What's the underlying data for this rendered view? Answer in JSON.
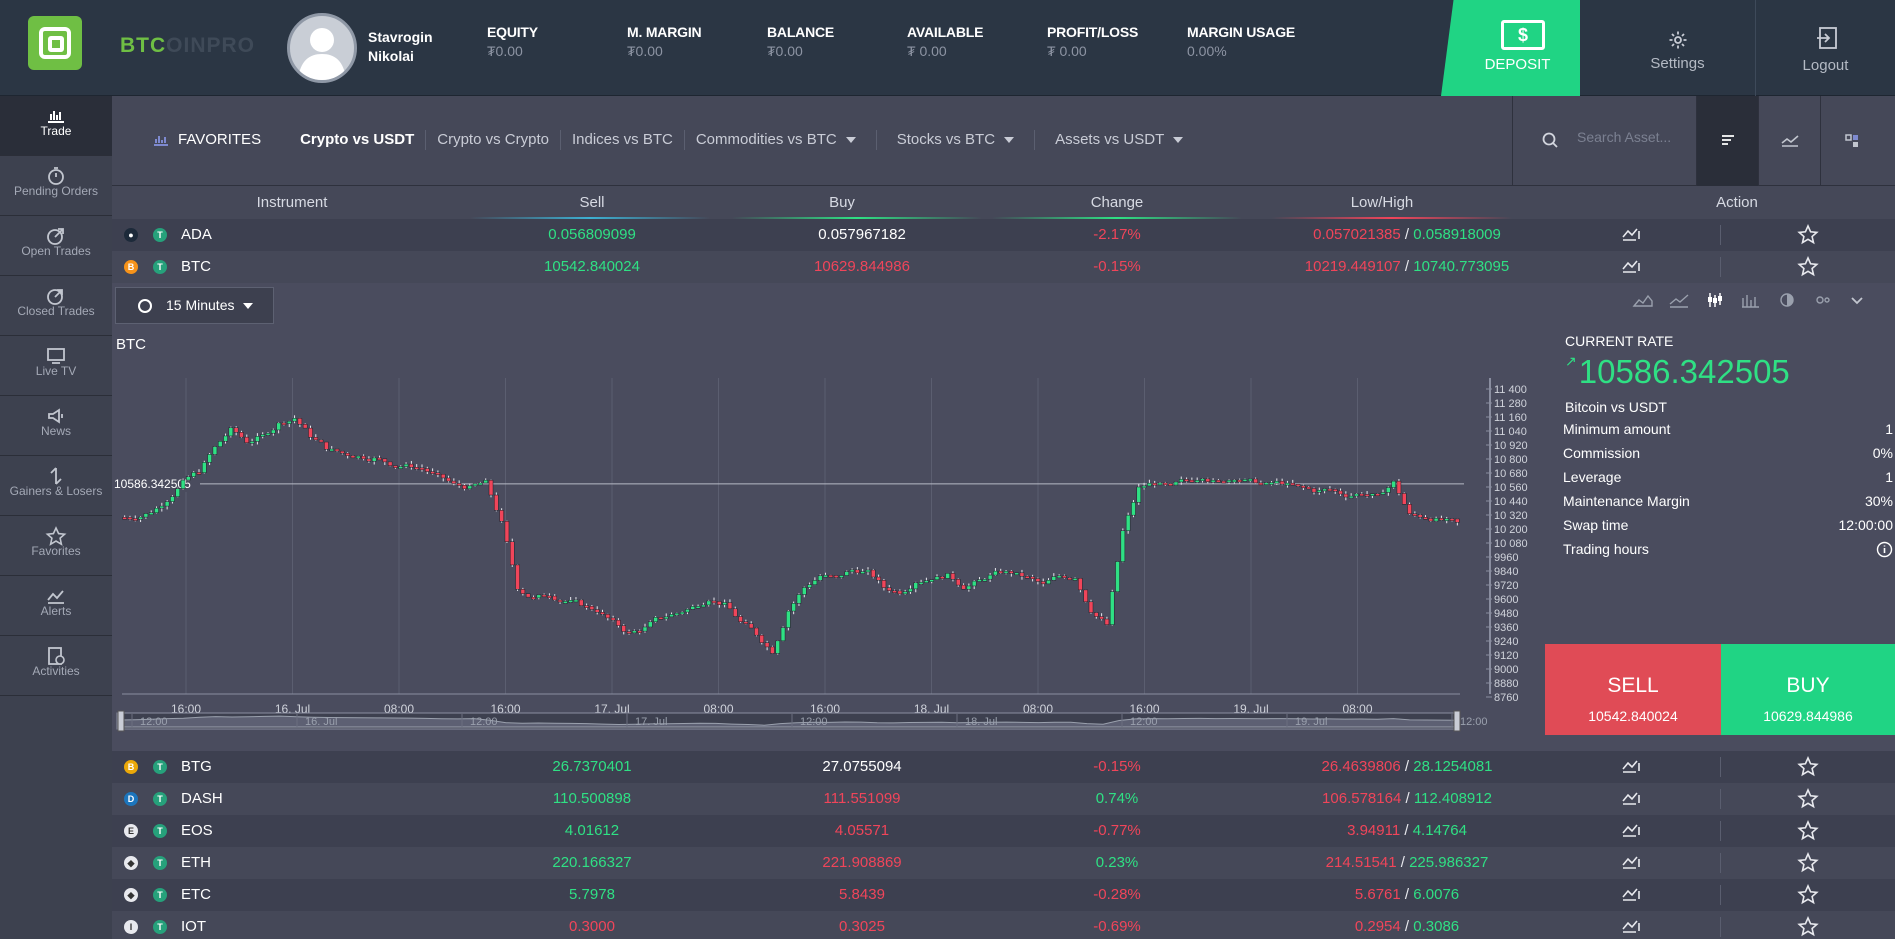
{
  "brand": {
    "name_a": "BTC",
    "name_b": "OINPRO"
  },
  "user": {
    "first": "Stavrogin",
    "last": "Nikolai"
  },
  "stats": [
    {
      "label": "EQUITY",
      "value": "₮0.00"
    },
    {
      "label": "M. MARGIN",
      "value": "₮0.00"
    },
    {
      "label": "BALANCE",
      "value": "₮0.00"
    },
    {
      "label": "AVAILABLE",
      "value": "₮ 0.00"
    },
    {
      "label": "PROFIT/LOSS",
      "value": "₮ 0.00"
    },
    {
      "label": "MARGIN USAGE",
      "value": "0.00%"
    }
  ],
  "header": {
    "deposit": "DEPOSIT",
    "deposit_symbol": "$",
    "settings": "Settings",
    "logout": "Logout"
  },
  "sidebar": [
    {
      "label": "Trade",
      "icon": "trade-icon"
    },
    {
      "label": "Pending Orders",
      "icon": "stopwatch-icon"
    },
    {
      "label": "Open Trades",
      "icon": "open-trades-icon"
    },
    {
      "label": "Closed Trades",
      "icon": "closed-trades-icon"
    },
    {
      "label": "Live TV",
      "icon": "tv-icon"
    },
    {
      "label": "News",
      "icon": "megaphone-icon"
    },
    {
      "label": "Gainers & Losers",
      "icon": "gainers-losers-icon"
    },
    {
      "label": "Favorites",
      "icon": "star-icon"
    },
    {
      "label": "Alerts",
      "icon": "alerts-icon"
    },
    {
      "label": "Activities",
      "icon": "activities-icon"
    }
  ],
  "filters": {
    "favorites": "FAVORITES",
    "tabs": [
      "Crypto vs USDT",
      "Crypto vs Crypto",
      "Indices vs BTC",
      "Commodities vs BTC",
      "Stocks vs BTC",
      "Assets vs USDT"
    ],
    "search_placeholder": "Search Asset..."
  },
  "table": {
    "headers": [
      "Instrument",
      "Sell",
      "Buy",
      "Change",
      "Low/High",
      "Action"
    ],
    "rows": [
      {
        "name": "ADA",
        "sell": "0.056809099",
        "buy": "0.057967182",
        "change": "-2.17%",
        "low": "0.057021385",
        "high": "0.058918009"
      },
      {
        "name": "BTC",
        "sell": "10542.840024",
        "buy": "10629.844986",
        "change": "-0.15%",
        "low": "10219.449107",
        "high": "10740.773095"
      },
      {
        "name": "BTG",
        "sell": "26.7370401",
        "buy": "27.0755094",
        "change": "-0.15%",
        "low": "26.4639806",
        "high": "28.1254081"
      },
      {
        "name": "DASH",
        "sell": "110.500898",
        "buy": "111.551099",
        "change": "0.74%",
        "low": "106.578164",
        "high": "112.408912"
      },
      {
        "name": "EOS",
        "sell": "4.01612",
        "buy": "4.05571",
        "change": "-0.77%",
        "low": "3.94911",
        "high": "4.14764"
      },
      {
        "name": "ETH",
        "sell": "220.166327",
        "buy": "221.908869",
        "change": "0.23%",
        "low": "214.51541",
        "high": "225.986327"
      },
      {
        "name": "ETC",
        "sell": "5.7978",
        "buy": "5.8439",
        "change": "-0.28%",
        "low": "5.6761",
        "high": "6.0076"
      },
      {
        "name": "IOT",
        "sell": "0.3000",
        "buy": "0.3025",
        "change": "-0.69%",
        "low": "0.2954",
        "high": "0.3086"
      }
    ]
  },
  "chart_panel": {
    "timeframe": "15 Minutes",
    "title": "BTC",
    "price_label": "10586.342505",
    "rate_title": "CURRENT RATE",
    "rate": "10586.342505",
    "pair": "Bitcoin vs USDT",
    "details": [
      {
        "k": "Minimum amount",
        "v": "1"
      },
      {
        "k": "Commission",
        "v": "0%"
      },
      {
        "k": "Leverage",
        "v": "1"
      },
      {
        "k": "Maintenance Margin",
        "v": "30%"
      },
      {
        "k": "Swap time",
        "v": "12:00:00"
      },
      {
        "k": "Trading hours",
        "v": ""
      }
    ],
    "sell_label": "SELL",
    "sell_price": "10542.840024",
    "buy_label": "BUY",
    "buy_price": "10629.844986"
  },
  "chart_data": {
    "type": "candlestick",
    "title": "BTC",
    "yticks": [
      11400,
      11280,
      11160,
      11040,
      10920,
      10800,
      10680,
      10560,
      10440,
      10320,
      10200,
      10080,
      9960,
      9840,
      9720,
      9600,
      9480,
      9360,
      9240,
      9120,
      9000,
      8880,
      8760
    ],
    "ylim": [
      8760,
      11400
    ],
    "xticks": [
      "16:00",
      "16. Jul",
      "08:00",
      "16:00",
      "17. Jul",
      "08:00",
      "16:00",
      "18. Jul",
      "08:00",
      "16:00",
      "19. Jul",
      "08:00"
    ],
    "nav_ticks": [
      "12:00",
      "16. Jul",
      "12:00",
      "17. Jul",
      "12:00",
      "18. Jul",
      "12:00",
      "19. Jul",
      "12:00"
    ],
    "current_price": 10586.342505,
    "close_path": [
      10300,
      10350,
      10450,
      10600,
      10700,
      10900,
      11050,
      10950,
      11000,
      11100,
      11150,
      11000,
      10900,
      10850,
      10820,
      10800,
      10760,
      10740,
      10720,
      10650,
      10580,
      10550,
      10600,
      10250,
      9700,
      9600,
      9640,
      9580,
      9560,
      9500,
      9400,
      9300,
      9350,
      9450,
      9480,
      9530,
      9600,
      9550,
      9400,
      9300,
      9150,
      9500,
      9700,
      9800,
      9780,
      9850,
      9830,
      9700,
      9660,
      9750,
      9780,
      9800,
      9700,
      9760,
      9820,
      9830,
      9780,
      9720,
      9800,
      9790,
      9500,
      9380,
      10180,
      10550,
      10600,
      10560,
      10620,
      10650,
      10600,
      10640,
      10610,
      10580,
      10600,
      10560,
      10530,
      10540,
      10490,
      10510,
      10480,
      10600,
      10320,
      10300,
      10280,
      10250
    ]
  },
  "colors": {
    "up": "#2fe084",
    "down": "#f0455a",
    "accent": "#20d484",
    "sell": "#e04b56"
  }
}
